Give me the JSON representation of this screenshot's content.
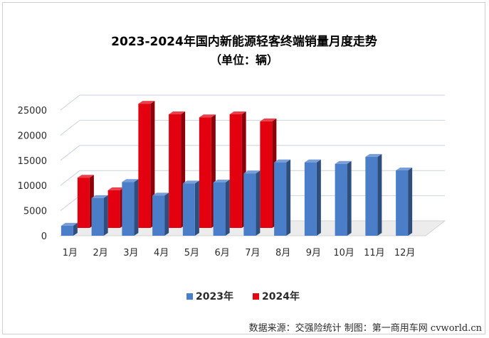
{
  "chart_data": {
    "type": "bar",
    "title": "2023-2024年国内新能源轻客终端销量月度走势",
    "subtitle": "（单位：辆）",
    "categories": [
      "1月",
      "2月",
      "3月",
      "4月",
      "5月",
      "6月",
      "7月",
      "8月",
      "9月",
      "10月",
      "11月",
      "12月"
    ],
    "series": [
      {
        "name": "2023年",
        "color": "#4a7ec9",
        "values": [
          2000,
          7500,
          10700,
          8000,
          10400,
          10600,
          12400,
          14600,
          14600,
          14300,
          15700,
          13000
        ]
      },
      {
        "name": "2024年",
        "color": "#e3000f",
        "values": [
          10000,
          7500,
          24700,
          22600,
          22000,
          22600,
          21200,
          null,
          null,
          null,
          null,
          null
        ]
      }
    ],
    "yticks": [
      0,
      5000,
      10000,
      15000,
      20000,
      25000
    ],
    "ylim": [
      0,
      25000
    ],
    "grid": true,
    "legend_position": "bottom"
  },
  "source_note": "数据来源：交强险统计 制图：第一商用车网 cvworld.cn"
}
